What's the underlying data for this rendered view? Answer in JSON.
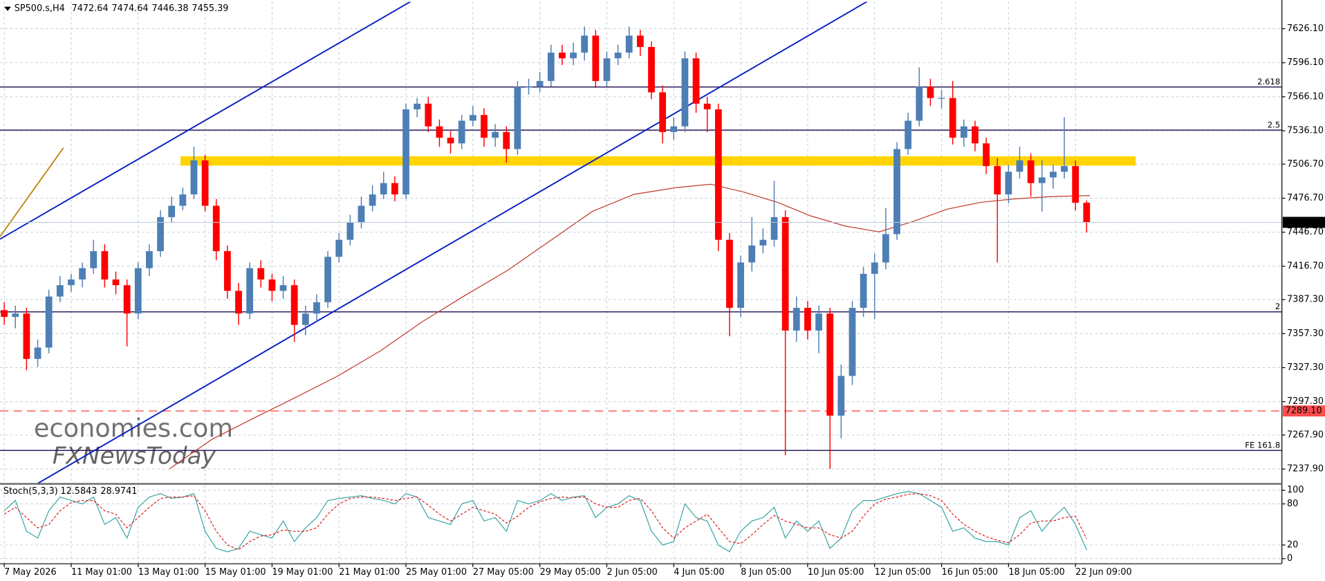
{
  "chart_data": [
    {
      "type": "candlestick",
      "symbol": "SP500.s,H4",
      "open": [
        7378,
        7372,
        7375,
        7335,
        7345,
        7390,
        7400,
        7405,
        7415,
        7430,
        7405,
        7400,
        7375,
        7415,
        7430,
        7460,
        7470,
        7480,
        7510,
        7470,
        7430,
        7395,
        7375,
        7415,
        7405,
        7395,
        7400,
        7365,
        7375,
        7385,
        7425,
        7440,
        7455,
        7470,
        7480,
        7490,
        7480,
        7555,
        7560,
        7540,
        7530,
        7525,
        7545,
        7550,
        7530,
        7535,
        7520,
        7575,
        7575,
        7580,
        7605,
        7600,
        7605,
        7620,
        7580,
        7600,
        7605,
        7620,
        7610,
        7570,
        7535,
        7540,
        7600,
        7560,
        7555,
        7440,
        7380,
        7420,
        7435,
        7440,
        7460,
        7360,
        7380,
        7360,
        7375,
        7285,
        7320,
        7380,
        7410,
        7420,
        7445,
        7520,
        7545,
        7575,
        7565,
        7565,
        7530,
        7540,
        7525,
        7505,
        7480,
        7500,
        7510,
        7490,
        7495,
        7500,
        7505,
        7472.64
      ],
      "high": [
        7385,
        7382,
        7380,
        7352,
        7396,
        7408,
        7410,
        7420,
        7440,
        7436,
        7412,
        7405,
        7420,
        7436,
        7466,
        7478,
        7486,
        7522,
        7515,
        7476,
        7435,
        7402,
        7420,
        7422,
        7410,
        7408,
        7405,
        7382,
        7392,
        7430,
        7446,
        7462,
        7478,
        7488,
        7500,
        7496,
        7560,
        7565,
        7566,
        7546,
        7536,
        7550,
        7558,
        7556,
        7542,
        7540,
        7580,
        7582,
        7588,
        7612,
        7612,
        7614,
        7628,
        7625,
        7606,
        7612,
        7628,
        7625,
        7615,
        7576,
        7548,
        7606,
        7605,
        7566,
        7560,
        7446,
        7426,
        7460,
        7450,
        7492,
        7466,
        7390,
        7386,
        7382,
        7380,
        7330,
        7386,
        7416,
        7428,
        7468,
        7526,
        7552,
        7592,
        7582,
        7572,
        7580,
        7546,
        7545,
        7530,
        7512,
        7506,
        7522,
        7516,
        7510,
        7506,
        7548,
        7510,
        7474.64
      ],
      "low": [
        7365,
        7362,
        7325,
        7328,
        7340,
        7385,
        7394,
        7398,
        7410,
        7398,
        7392,
        7346,
        7370,
        7408,
        7425,
        7455,
        7466,
        7476,
        7465,
        7422,
        7388,
        7365,
        7370,
        7398,
        7386,
        7388,
        7350,
        7356,
        7368,
        7380,
        7420,
        7435,
        7450,
        7465,
        7476,
        7474,
        7476,
        7548,
        7535,
        7522,
        7516,
        7520,
        7540,
        7522,
        7522,
        7508,
        7515,
        7568,
        7570,
        7575,
        7594,
        7594,
        7598,
        7574,
        7575,
        7594,
        7600,
        7602,
        7564,
        7525,
        7528,
        7535,
        7552,
        7535,
        7430,
        7355,
        7372,
        7412,
        7428,
        7434,
        7250,
        7350,
        7352,
        7340,
        7238,
        7265,
        7312,
        7372,
        7370,
        7414,
        7440,
        7515,
        7540,
        7558,
        7556,
        7524,
        7522,
        7518,
        7498,
        7420,
        7472,
        7494,
        7478,
        7465,
        7485,
        7494,
        7466,
        7446.38
      ],
      "close": [
        7372,
        7375,
        7335,
        7345,
        7390,
        7400,
        7405,
        7415,
        7430,
        7405,
        7400,
        7375,
        7415,
        7430,
        7460,
        7470,
        7480,
        7510,
        7470,
        7430,
        7395,
        7375,
        7415,
        7405,
        7395,
        7400,
        7365,
        7375,
        7385,
        7425,
        7440,
        7455,
        7470,
        7480,
        7490,
        7480,
        7555,
        7560,
        7540,
        7530,
        7525,
        7545,
        7550,
        7530,
        7535,
        7520,
        7575,
        7575,
        7580,
        7605,
        7600,
        7605,
        7620,
        7580,
        7600,
        7605,
        7620,
        7610,
        7570,
        7535,
        7540,
        7600,
        7560,
        7555,
        7440,
        7380,
        7420,
        7435,
        7440,
        7460,
        7360,
        7380,
        7360,
        7375,
        7285,
        7320,
        7380,
        7410,
        7420,
        7445,
        7520,
        7545,
        7575,
        7565,
        7565,
        7530,
        7540,
        7525,
        7505,
        7480,
        7500,
        7510,
        7490,
        7495,
        7500,
        7505,
        7472.64,
        7455.39
      ],
      "colors": {
        "up": "#4d7fb5",
        "down": "#ff0000"
      },
      "xlim": [
        -0.38,
        114.5
      ],
      "xticks": [
        {
          "value": 0,
          "label": "7 May 2026"
        },
        {
          "value": 6,
          "label": "11 May 01:00"
        },
        {
          "value": 12,
          "label": "13 May 01:00"
        },
        {
          "value": 18,
          "label": "15 May 01:00"
        },
        {
          "value": 24,
          "label": "19 May 01:00"
        },
        {
          "value": 30,
          "label": "21 May 01:00"
        },
        {
          "value": 36,
          "label": "25 May 01:00"
        },
        {
          "value": 42,
          "label": "27 May 05:00"
        },
        {
          "value": 48,
          "label": "29 May 05:00"
        },
        {
          "value": 54,
          "label": "2 Jun 05:00"
        },
        {
          "value": 60,
          "label": "4 Jun 05:00"
        },
        {
          "value": 66,
          "label": "8 Jun 05:00"
        },
        {
          "value": 72,
          "label": "10 Jun 05:00"
        },
        {
          "value": 78,
          "label": "12 Jun 05:00"
        },
        {
          "value": 84,
          "label": "16 Jun 05:00"
        },
        {
          "value": 90,
          "label": "18 Jun 05:00"
        },
        {
          "value": 96,
          "label": "22 Jun 09:00"
        }
      ],
      "ylim": [
        7225.2,
        7649.9
      ],
      "yticks": [
        {
          "value": 7626.1,
          "label": "7626.10"
        },
        {
          "value": 7596.1,
          "label": "7596.10"
        },
        {
          "value": 7566.1,
          "label": "7566.10"
        },
        {
          "value": 7536.1,
          "label": "7536.10"
        },
        {
          "value": 7506.7,
          "label": "7506.70"
        },
        {
          "value": 7476.7,
          "label": "7476.70"
        },
        {
          "value": 7446.7,
          "label": "7446.70"
        },
        {
          "value": 7416.7,
          "label": "7416.70"
        },
        {
          "value": 7387.3,
          "label": "7387.30"
        },
        {
          "value": 7357.3,
          "label": "7357.30"
        },
        {
          "value": 7327.3,
          "label": "7327.30"
        },
        {
          "value": 7297.3,
          "label": "7297.30"
        },
        {
          "value": 7267.9,
          "label": "7267.90"
        },
        {
          "value": 7237.9,
          "label": "7237.90"
        }
      ],
      "grid": true,
      "moving_average": {
        "color": "#c0392b",
        "x": [
          14.8,
          18.6,
          22.4,
          26.1,
          29.9,
          33.7,
          37.5,
          41.3,
          45.1,
          48.9,
          52.7,
          56.4,
          60.2,
          63.3,
          66.3,
          69.3,
          72.3,
          75.4,
          78.4,
          81.4,
          84.5,
          87.5,
          90.5,
          93.6,
          97.3
        ],
        "values": [
          7238,
          7264,
          7283,
          7301,
          7320,
          7342,
          7368,
          7391,
          7413,
          7439,
          7465,
          7480,
          7486,
          7489,
          7482,
          7473,
          7461,
          7452,
          7447,
          7456,
          7467,
          7473,
          7476,
          7478,
          7479
        ]
      },
      "levels": [
        {
          "label": "2.618",
          "value": 7574.7
        },
        {
          "label": "2.5",
          "value": 7536.7
        },
        {
          "label": "2",
          "value": 7376.5
        },
        {
          "label": "FE 161.8",
          "value": 7254.3
        }
      ],
      "level_color": "#2e1a5c",
      "stop_level": {
        "value": 7289.1,
        "label": "7289.10",
        "color": "#ff4d4d"
      },
      "zone": {
        "from": 7505.4,
        "to": 7513.6,
        "x": [
          15.8,
          101.4
        ],
        "color": "#ffd400"
      },
      "trendlines": [
        {
          "color": "#0a1fc4",
          "x": [
            -0.38,
            36.4
          ],
          "values": [
            7440.6,
            7649.9
          ]
        },
        {
          "color": "#0a1fc4",
          "x": [
            3.0,
            77.3
          ],
          "values": [
            7225.2,
            7649.9
          ]
        },
        {
          "color": "#c08a1a",
          "x": [
            -0.38,
            5.3
          ],
          "values": [
            7442.8,
            7521
          ]
        }
      ],
      "watermark": [
        "economies.com",
        "FXNewsToday"
      ]
    },
    {
      "type": "stochastic",
      "title": "Stoch(5,3,3)",
      "series": [
        {
          "color": "#3aa6a6",
          "values": [
            70,
            85,
            40,
            30,
            70,
            90,
            85,
            80,
            90,
            50,
            60,
            30,
            75,
            90,
            95,
            88,
            90,
            95,
            40,
            15,
            10,
            15,
            40,
            35,
            30,
            55,
            25,
            45,
            60,
            85,
            88,
            90,
            92,
            88,
            85,
            80,
            95,
            90,
            60,
            55,
            50,
            80,
            85,
            55,
            60,
            40,
            85,
            80,
            85,
            95,
            85,
            90,
            92,
            60,
            75,
            80,
            92,
            85,
            40,
            20,
            25,
            80,
            60,
            55,
            20,
            10,
            40,
            55,
            60,
            75,
            30,
            55,
            40,
            55,
            15,
            30,
            70,
            85,
            85,
            90,
            95,
            98,
            95,
            85,
            75,
            40,
            45,
            30,
            25,
            25,
            20,
            60,
            70,
            40,
            60,
            75,
            50,
            12.5843
          ]
        },
        {
          "color": "#e02020",
          "dashed": true,
          "values": [
            65,
            75,
            60,
            45,
            50,
            70,
            82,
            85,
            85,
            70,
            65,
            45,
            60,
            75,
            88,
            90,
            90,
            92,
            70,
            40,
            20,
            13,
            25,
            33,
            35,
            42,
            40,
            40,
            45,
            65,
            80,
            88,
            90,
            90,
            88,
            85,
            88,
            90,
            78,
            65,
            55,
            65,
            75,
            70,
            65,
            52,
            62,
            75,
            83,
            88,
            90,
            89,
            90,
            80,
            75,
            75,
            85,
            88,
            70,
            45,
            30,
            45,
            55,
            65,
            45,
            25,
            22,
            35,
            50,
            63,
            55,
            50,
            45,
            45,
            35,
            30,
            40,
            62,
            80,
            87,
            90,
            94,
            95,
            92,
            85,
            65,
            50,
            40,
            32,
            27,
            23,
            35,
            52,
            55,
            55,
            60,
            62,
            28.9741
          ]
        }
      ],
      "ylim": [
        -7.4,
        107.4
      ],
      "yticks": [
        100,
        80,
        20,
        0
      ],
      "grid": true
    }
  ]
}
